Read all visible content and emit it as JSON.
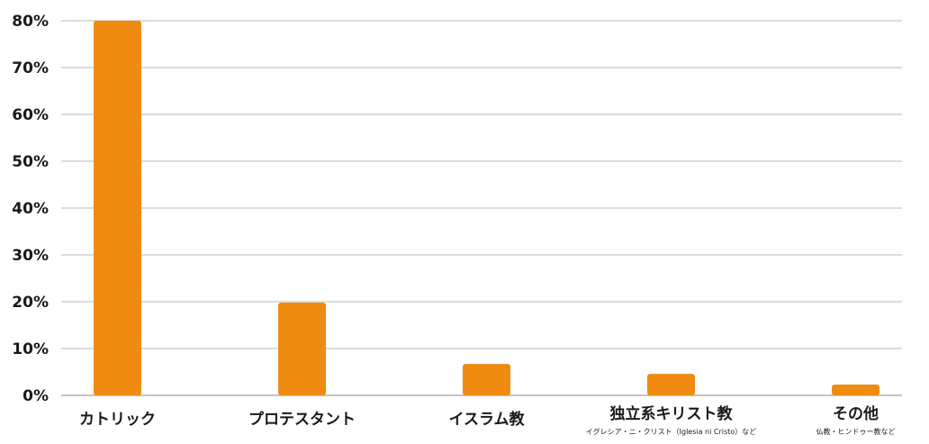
{
  "chart_data": {
    "type": "bar",
    "categories": [
      "カトリック",
      "プロテスタント",
      "イスラム教",
      "独立系キリスト教",
      "その他"
    ],
    "category_notes": [
      "",
      "",
      "",
      "イグレシア・ニ・クリスト（Iglesia ni Cristo）など",
      "仏教・ヒンドゥー教など"
    ],
    "values": [
      80,
      19.8,
      6.7,
      4.6,
      2.3
    ],
    "yticks": [
      "0%",
      "10%",
      "20%",
      "30%",
      "40%",
      "50%",
      "60%",
      "70%",
      "80%"
    ],
    "ylim": [
      0,
      80
    ],
    "grid": true,
    "bar_color": "#EE8B10"
  }
}
